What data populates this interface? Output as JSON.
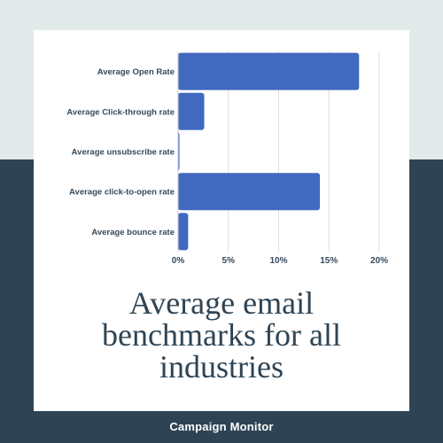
{
  "colors": {
    "background_top": "#e2eaea",
    "background_bottom": "#2e4454",
    "card": "#ffffff",
    "bar": "#4069bf",
    "text": "#36495a",
    "brand_text": "#ffffff"
  },
  "chart_data": {
    "type": "bar",
    "orientation": "horizontal",
    "categories": [
      "Average Open Rate",
      "Average Click-through rate",
      "Average unsubscribe rate",
      "Average click-to-open rate",
      "Average bounce rate"
    ],
    "values": [
      18.0,
      2.6,
      0.1,
      14.1,
      1.0
    ],
    "xlim": [
      0,
      20
    ],
    "xticks": [
      0,
      5,
      10,
      15,
      20
    ],
    "xtick_labels": [
      "0%",
      "5%",
      "10%",
      "15%",
      "20%"
    ],
    "grid": "vertical",
    "title": [
      "Average email",
      "benchmarks for all",
      "industries"
    ]
  },
  "footer": {
    "brand": "Campaign Monitor"
  }
}
